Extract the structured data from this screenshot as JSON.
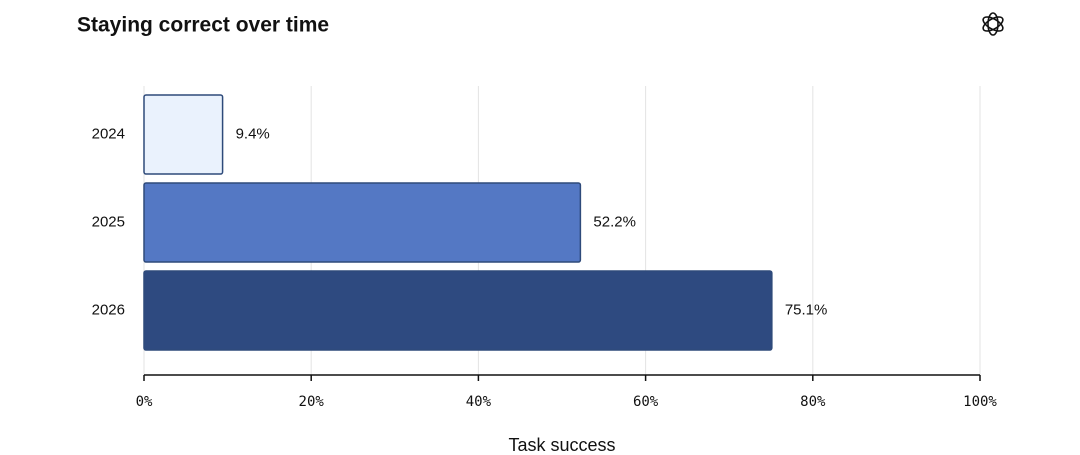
{
  "chart_data": {
    "type": "hbar",
    "title": "Staying correct over time",
    "categories": [
      "2024",
      "2025",
      "2026"
    ],
    "values": [
      9.4,
      52.2,
      75.1
    ],
    "value_labels": [
      "9.4%",
      "52.2%",
      "75.1%"
    ],
    "colors": [
      "#eaf2fd",
      "#5478c4",
      "#2e4a80"
    ],
    "xlabel": "Task success",
    "xlim": [
      0,
      100
    ],
    "xticks": [
      {
        "value": 0,
        "label": "0%"
      },
      {
        "value": 20,
        "label": "20%"
      },
      {
        "value": 40,
        "label": "40%"
      },
      {
        "value": 60,
        "label": "60%"
      },
      {
        "value": 80,
        "label": "80%"
      },
      {
        "value": 100,
        "label": "100%"
      }
    ],
    "grid": true
  }
}
